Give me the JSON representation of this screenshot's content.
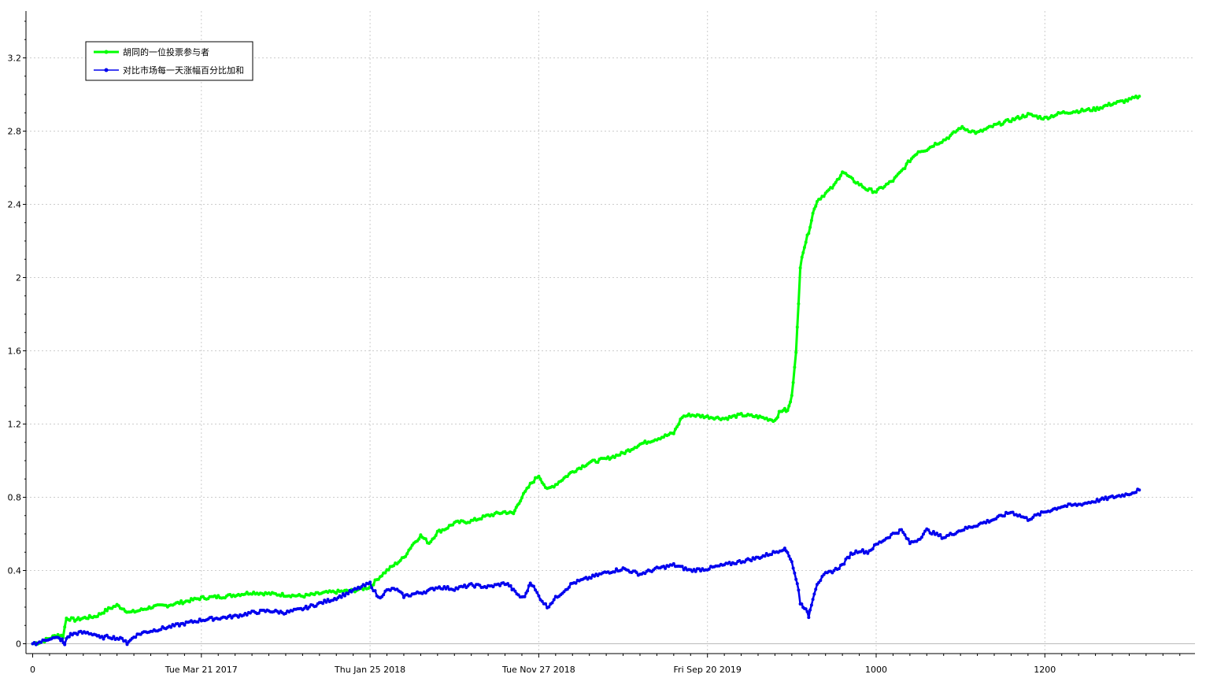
{
  "chart_data": {
    "type": "line",
    "grid": true,
    "legend_position": "top-left",
    "xlim": [
      0,
      1380
    ],
    "ylim": [
      -0.08,
      3.45
    ],
    "y_ticks": [
      {
        "value": 0,
        "label": "0"
      },
      {
        "value": 0.4,
        "label": "0.4"
      },
      {
        "value": 0.8,
        "label": "0.8"
      },
      {
        "value": 1.2,
        "label": "1.2"
      },
      {
        "value": 1.6,
        "label": "1.6"
      },
      {
        "value": 2.0,
        "label": "2"
      },
      {
        "value": 2.4,
        "label": "2.4"
      },
      {
        "value": 2.8,
        "label": "2.8"
      },
      {
        "value": 3.2,
        "label": "3.2"
      }
    ],
    "x_ticks": [
      {
        "value": 0,
        "label": "0"
      },
      {
        "value": 200,
        "label": "Tue Mar 21 2017"
      },
      {
        "value": 400,
        "label": "Thu Jan 25 2018"
      },
      {
        "value": 600,
        "label": "Tue Nov 27 2018"
      },
      {
        "value": 800,
        "label": "Fri Sep 20 2019"
      },
      {
        "value": 1000,
        "label": "1000"
      },
      {
        "value": 1200,
        "label": "1200"
      }
    ],
    "series": [
      {
        "name": "胡同的一位投票参与者",
        "color": "#00ff00",
        "x": [
          0,
          10,
          20,
          30,
          36,
          40,
          50,
          60,
          75,
          90,
          100,
          108,
          115,
          125,
          140,
          160,
          180,
          200,
          230,
          260,
          290,
          320,
          350,
          380,
          400,
          410,
          420,
          440,
          450,
          460,
          470,
          480,
          490,
          500,
          520,
          540,
          560,
          570,
          575,
          580,
          590,
          600,
          610,
          620,
          640,
          660,
          680,
          700,
          720,
          740,
          760,
          770,
          780,
          800,
          820,
          840,
          860,
          880,
          885,
          890,
          895,
          900,
          905,
          908,
          910,
          912,
          915,
          920,
          925,
          930,
          940,
          950,
          960,
          970,
          980,
          990,
          1000,
          1010,
          1020,
          1030,
          1040,
          1050,
          1060,
          1070,
          1080,
          1090,
          1100,
          1120,
          1140,
          1160,
          1180,
          1200,
          1220,
          1240,
          1260,
          1280,
          1300,
          1312
        ],
        "values": [
          0.0,
          0.01,
          0.03,
          0.05,
          0.04,
          0.14,
          0.13,
          0.14,
          0.15,
          0.19,
          0.21,
          0.19,
          0.17,
          0.18,
          0.2,
          0.21,
          0.23,
          0.25,
          0.26,
          0.28,
          0.27,
          0.26,
          0.28,
          0.29,
          0.31,
          0.36,
          0.4,
          0.47,
          0.54,
          0.59,
          0.55,
          0.61,
          0.63,
          0.66,
          0.67,
          0.7,
          0.72,
          0.71,
          0.76,
          0.8,
          0.87,
          0.92,
          0.84,
          0.87,
          0.94,
          0.99,
          1.01,
          1.04,
          1.09,
          1.12,
          1.15,
          1.24,
          1.25,
          1.24,
          1.23,
          1.25,
          1.24,
          1.22,
          1.26,
          1.28,
          1.27,
          1.35,
          1.6,
          1.85,
          2.05,
          2.12,
          2.17,
          2.25,
          2.35,
          2.42,
          2.46,
          2.5,
          2.58,
          2.54,
          2.51,
          2.48,
          2.47,
          2.5,
          2.53,
          2.58,
          2.64,
          2.69,
          2.7,
          2.73,
          2.75,
          2.78,
          2.82,
          2.79,
          2.83,
          2.86,
          2.89,
          2.87,
          2.9,
          2.91,
          2.92,
          2.95,
          2.97,
          2.99
        ]
      },
      {
        "name": "对比市场每一天涨幅百分比加和",
        "color": "#0000ee",
        "x": [
          0,
          10,
          20,
          30,
          35,
          38,
          40,
          45,
          55,
          65,
          75,
          80,
          90,
          100,
          110,
          112,
          120,
          130,
          140,
          150,
          160,
          170,
          180,
          200,
          220,
          240,
          260,
          280,
          300,
          320,
          340,
          360,
          380,
          400,
          410,
          420,
          430,
          440,
          450,
          460,
          470,
          480,
          500,
          520,
          540,
          560,
          565,
          570,
          580,
          585,
          590,
          600,
          610,
          620,
          630,
          640,
          660,
          680,
          700,
          720,
          740,
          760,
          780,
          800,
          820,
          840,
          860,
          880,
          890,
          895,
          900,
          905,
          908,
          910,
          915,
          920,
          925,
          930,
          940,
          950,
          960,
          970,
          980,
          990,
          1000,
          1010,
          1020,
          1030,
          1040,
          1050,
          1060,
          1080,
          1100,
          1120,
          1140,
          1160,
          1180,
          1200,
          1220,
          1240,
          1260,
          1280,
          1300,
          1312
        ],
        "values": [
          0.0,
          0.01,
          0.03,
          0.03,
          0.02,
          -0.01,
          0.03,
          0.05,
          0.06,
          0.06,
          0.05,
          0.03,
          0.04,
          0.03,
          0.02,
          0.0,
          0.04,
          0.06,
          0.07,
          0.08,
          0.09,
          0.1,
          0.11,
          0.13,
          0.14,
          0.15,
          0.17,
          0.18,
          0.17,
          0.19,
          0.22,
          0.25,
          0.29,
          0.33,
          0.25,
          0.29,
          0.3,
          0.26,
          0.27,
          0.28,
          0.29,
          0.31,
          0.3,
          0.32,
          0.31,
          0.33,
          0.32,
          0.29,
          0.25,
          0.27,
          0.34,
          0.26,
          0.2,
          0.25,
          0.29,
          0.33,
          0.36,
          0.39,
          0.41,
          0.38,
          0.41,
          0.43,
          0.4,
          0.41,
          0.43,
          0.45,
          0.47,
          0.5,
          0.52,
          0.5,
          0.45,
          0.35,
          0.3,
          0.22,
          0.2,
          0.15,
          0.25,
          0.33,
          0.38,
          0.4,
          0.43,
          0.49,
          0.51,
          0.5,
          0.54,
          0.57,
          0.6,
          0.62,
          0.55,
          0.57,
          0.62,
          0.58,
          0.62,
          0.65,
          0.68,
          0.72,
          0.68,
          0.72,
          0.75,
          0.76,
          0.78,
          0.8,
          0.82,
          0.84
        ]
      }
    ]
  }
}
